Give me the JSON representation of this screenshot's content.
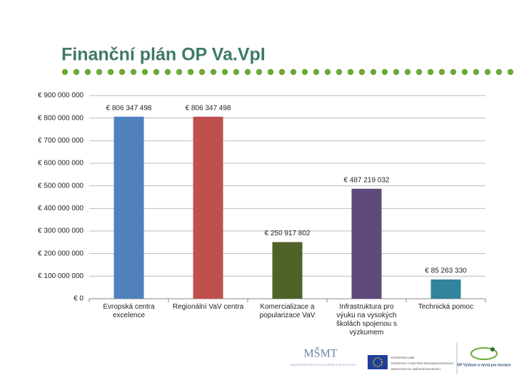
{
  "chart_data": {
    "type": "bar",
    "title": "Finanční plán OP Va.VpI",
    "categories": [
      "Evropská centra excelence",
      "Regionální VaV centra",
      "Komercializace a popularizace VaV",
      "Infrastruktura pro výuku na vysokých školách spojenou s výzkumem",
      "Technická pomoc"
    ],
    "values": [
      806347498,
      806347498,
      250917802,
      487219032,
      85263330
    ],
    "value_labels": [
      "€ 806 347 498",
      "€ 806 347 498",
      "€ 250 917 802",
      "€ 487 219 032",
      "€ 85 263 330"
    ],
    "colors": [
      "#4f81bd",
      "#c0504d",
      "#4f6228",
      "#604a7b",
      "#31849b"
    ],
    "ylim": [
      0,
      900000000
    ],
    "yticks": [
      {
        "value": 0,
        "label": "€ 0"
      },
      {
        "value": 100000000,
        "label": "€ 100 000 000"
      },
      {
        "value": 200000000,
        "label": "€ 200 000 000"
      },
      {
        "value": 300000000,
        "label": "€ 300 000 000"
      },
      {
        "value": 400000000,
        "label": "€ 400 000 000"
      },
      {
        "value": 500000000,
        "label": "€ 500 000 000"
      },
      {
        "value": 600000000,
        "label": "€ 600 000 000"
      },
      {
        "value": 700000000,
        "label": "€ 700 000 000"
      },
      {
        "value": 800000000,
        "label": "€ 800 000 000"
      },
      {
        "value": 900000000,
        "label": "€ 900 000 000"
      }
    ],
    "grid": true
  },
  "footer": {
    "msmt": "MŠMT",
    "msmt_text": "MINISTERSTVO ŠKOLSTVÍ, MLÁDEŽE A TĚLOVÝCHOVY",
    "eu_lines": [
      "EVROPSKÁ UNIE",
      "EVROPSKÝ FOND PRO REGIONÁLNÍ ROZVOJ",
      "INVESTICE DO VAŠÍ BUDOUCNOSTI"
    ],
    "op": "OP Výzkum a vývoj pro inovace"
  }
}
